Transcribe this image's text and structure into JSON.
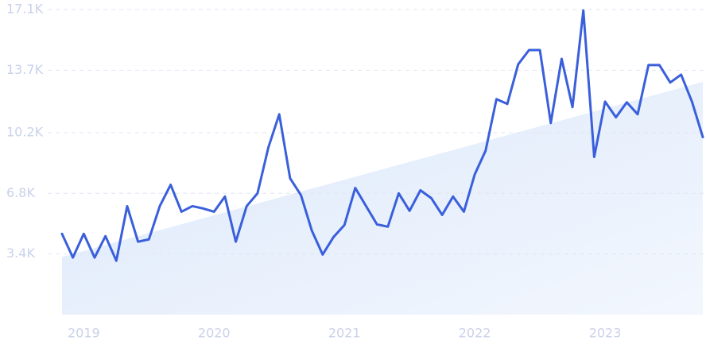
{
  "chart_data": {
    "type": "line",
    "categories": [
      null,
      null,
      "2019",
      null,
      null,
      null,
      null,
      null,
      null,
      null,
      null,
      null,
      null,
      null,
      "2020",
      null,
      null,
      null,
      null,
      null,
      null,
      null,
      null,
      null,
      null,
      null,
      "2021",
      null,
      null,
      null,
      null,
      null,
      null,
      null,
      null,
      null,
      null,
      null,
      "2022",
      null,
      null,
      null,
      null,
      null,
      null,
      null,
      null,
      null,
      null,
      null,
      "2023",
      null,
      null,
      null,
      null,
      null,
      null,
      null,
      null,
      null
    ],
    "series": [
      {
        "color": "#3a5fdb",
        "values": [
          4530,
          3200,
          4530,
          3200,
          4400,
          3020,
          6080,
          4090,
          4220,
          6080,
          7280,
          5770,
          6080,
          5950,
          5770,
          6620,
          4090,
          6080,
          6800,
          9370,
          11230,
          7640,
          6700,
          4710,
          3370,
          4350,
          5020,
          7100,
          6080,
          5060,
          4930,
          6800,
          5820,
          6970,
          6530,
          5590,
          6620,
          5770,
          7860,
          9190,
          12080,
          11810,
          14030,
          14830,
          14830,
          10740,
          14340,
          11630,
          17050,
          8840,
          11940,
          11060,
          11900,
          11230,
          13990,
          13990,
          13010,
          13450,
          11940,
          9950
        ]
      }
    ],
    "trend": {
      "values": [
        3240,
        13050
      ],
      "color": "#dce8fb"
    },
    "ylim": [
      0,
      17100
    ],
    "yticks": [
      {
        "value": 3400,
        "label": "3.4K"
      },
      {
        "value": 6800,
        "label": "6.8K"
      },
      {
        "value": 10200,
        "label": "10.2K"
      },
      {
        "value": 13700,
        "label": "13.7K"
      },
      {
        "value": 17100,
        "label": "17.1K"
      }
    ],
    "grid": true
  }
}
